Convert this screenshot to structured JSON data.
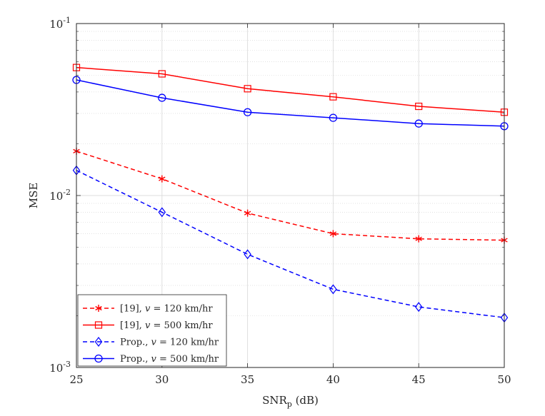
{
  "chart_data": {
    "type": "line",
    "title": "",
    "xlabel": {
      "main": "SNR",
      "subscript": "p",
      "units": " (dB)"
    },
    "ylabel": "MSE",
    "yscale": "log",
    "x": [
      25,
      30,
      35,
      40,
      45,
      50
    ],
    "xlim": [
      25,
      50
    ],
    "ylim": [
      0.001,
      0.1
    ],
    "xticks": [
      "25",
      "30",
      "35",
      "40",
      "45",
      "50"
    ],
    "yticks": [
      {
        "value": 0.001,
        "base": "10",
        "exp": "-3"
      },
      {
        "value": 0.01,
        "base": "10",
        "exp": "-2"
      },
      {
        "value": 0.1,
        "base": "10",
        "exp": "-1"
      }
    ],
    "grid": true,
    "legend_position": "bottom-left",
    "series": [
      {
        "name": "[19], v = 120 km/hr",
        "label_prefix": "[19], ",
        "label_var": "v",
        "label_suffix": " = 120 km/hr",
        "color": "#ff0000",
        "dash": "dashed",
        "marker": "asterisk",
        "values": [
          0.0181,
          0.0125,
          0.0079,
          0.006,
          0.0056,
          0.0055
        ]
      },
      {
        "name": "[19], v = 500 km/hr",
        "label_prefix": "[19], ",
        "label_var": "v",
        "label_suffix": " = 500 km/hr",
        "color": "#ff0000",
        "dash": "solid",
        "marker": "square",
        "values": [
          0.0555,
          0.051,
          0.0418,
          0.0375,
          0.033,
          0.0305
        ]
      },
      {
        "name": "Prop., v = 120 km/hr",
        "label_prefix": "Prop., ",
        "label_var": "v",
        "label_suffix": " = 120 km/hr",
        "color": "#0000ff",
        "dash": "dashed",
        "marker": "diamond",
        "values": [
          0.014,
          0.008,
          0.00455,
          0.00285,
          0.00225,
          0.00195
        ]
      },
      {
        "name": "Prop., v = 500 km/hr",
        "label_prefix": "Prop., ",
        "label_var": "v",
        "label_suffix": " = 500 km/hr",
        "color": "#0000ff",
        "dash": "solid",
        "marker": "circle",
        "values": [
          0.047,
          0.037,
          0.0305,
          0.0283,
          0.0262,
          0.0253
        ]
      }
    ]
  }
}
